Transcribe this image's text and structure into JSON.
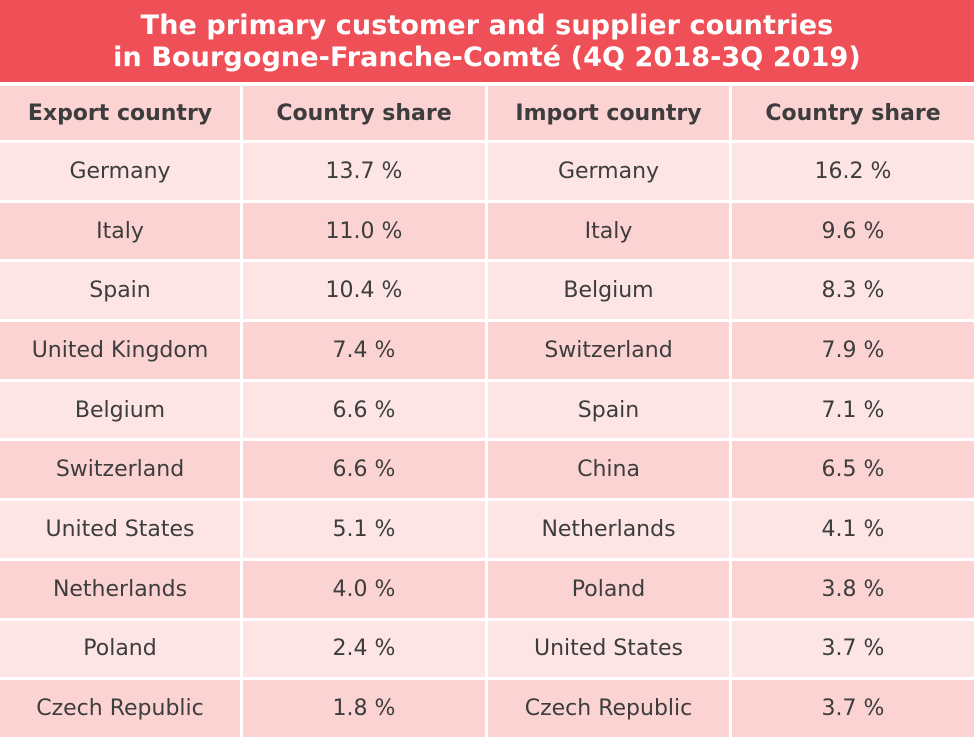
{
  "chart_data": {
    "type": "table",
    "title": "The primary customer and supplier countries in Bourgogne-Franche-Comté (4Q 2018-3Q 2019)",
    "title_lines": [
      "The primary customer and supplier countries",
      "in Bourgogne-Franche-Comté (4Q 2018-3Q 2019)"
    ],
    "columns": [
      "Export country",
      "Country share",
      "Import country",
      "Country share"
    ],
    "rows": [
      [
        "Germany",
        "13.7 %",
        "Germany",
        "16.2 %"
      ],
      [
        "Italy",
        "11.0 %",
        "Italy",
        "9.6 %"
      ],
      [
        "Spain",
        "10.4 %",
        "Belgium",
        "8.3 %"
      ],
      [
        "United Kingdom",
        "7.4 %",
        "Switzerland",
        "7.9 %"
      ],
      [
        "Belgium",
        "6.6 %",
        "Spain",
        "7.1 %"
      ],
      [
        "Switzerland",
        "6.6 %",
        "China",
        "6.5 %"
      ],
      [
        "United States",
        "5.1 %",
        "Netherlands",
        "4.1 %"
      ],
      [
        "Netherlands",
        "4.0 %",
        "Poland",
        "3.8 %"
      ],
      [
        "Poland",
        "2.4 %",
        "United States",
        "3.7 %"
      ],
      [
        "Czech Republic",
        "1.8 %",
        "Czech Republic",
        "3.7 %"
      ]
    ],
    "export_values": [
      13.7,
      11.0,
      10.4,
      7.4,
      6.6,
      6.6,
      5.1,
      4.0,
      2.4,
      1.8
    ],
    "import_values": [
      16.2,
      9.6,
      8.3,
      7.9,
      7.1,
      6.5,
      4.1,
      3.8,
      3.7,
      3.7
    ],
    "unit": "%"
  },
  "colors": {
    "title_bg": "#ef5057",
    "title_text": "#ffffff",
    "row_dark": "#fcd3d3",
    "row_light": "#fde5e5",
    "cell_text": "#3d3d3d"
  }
}
